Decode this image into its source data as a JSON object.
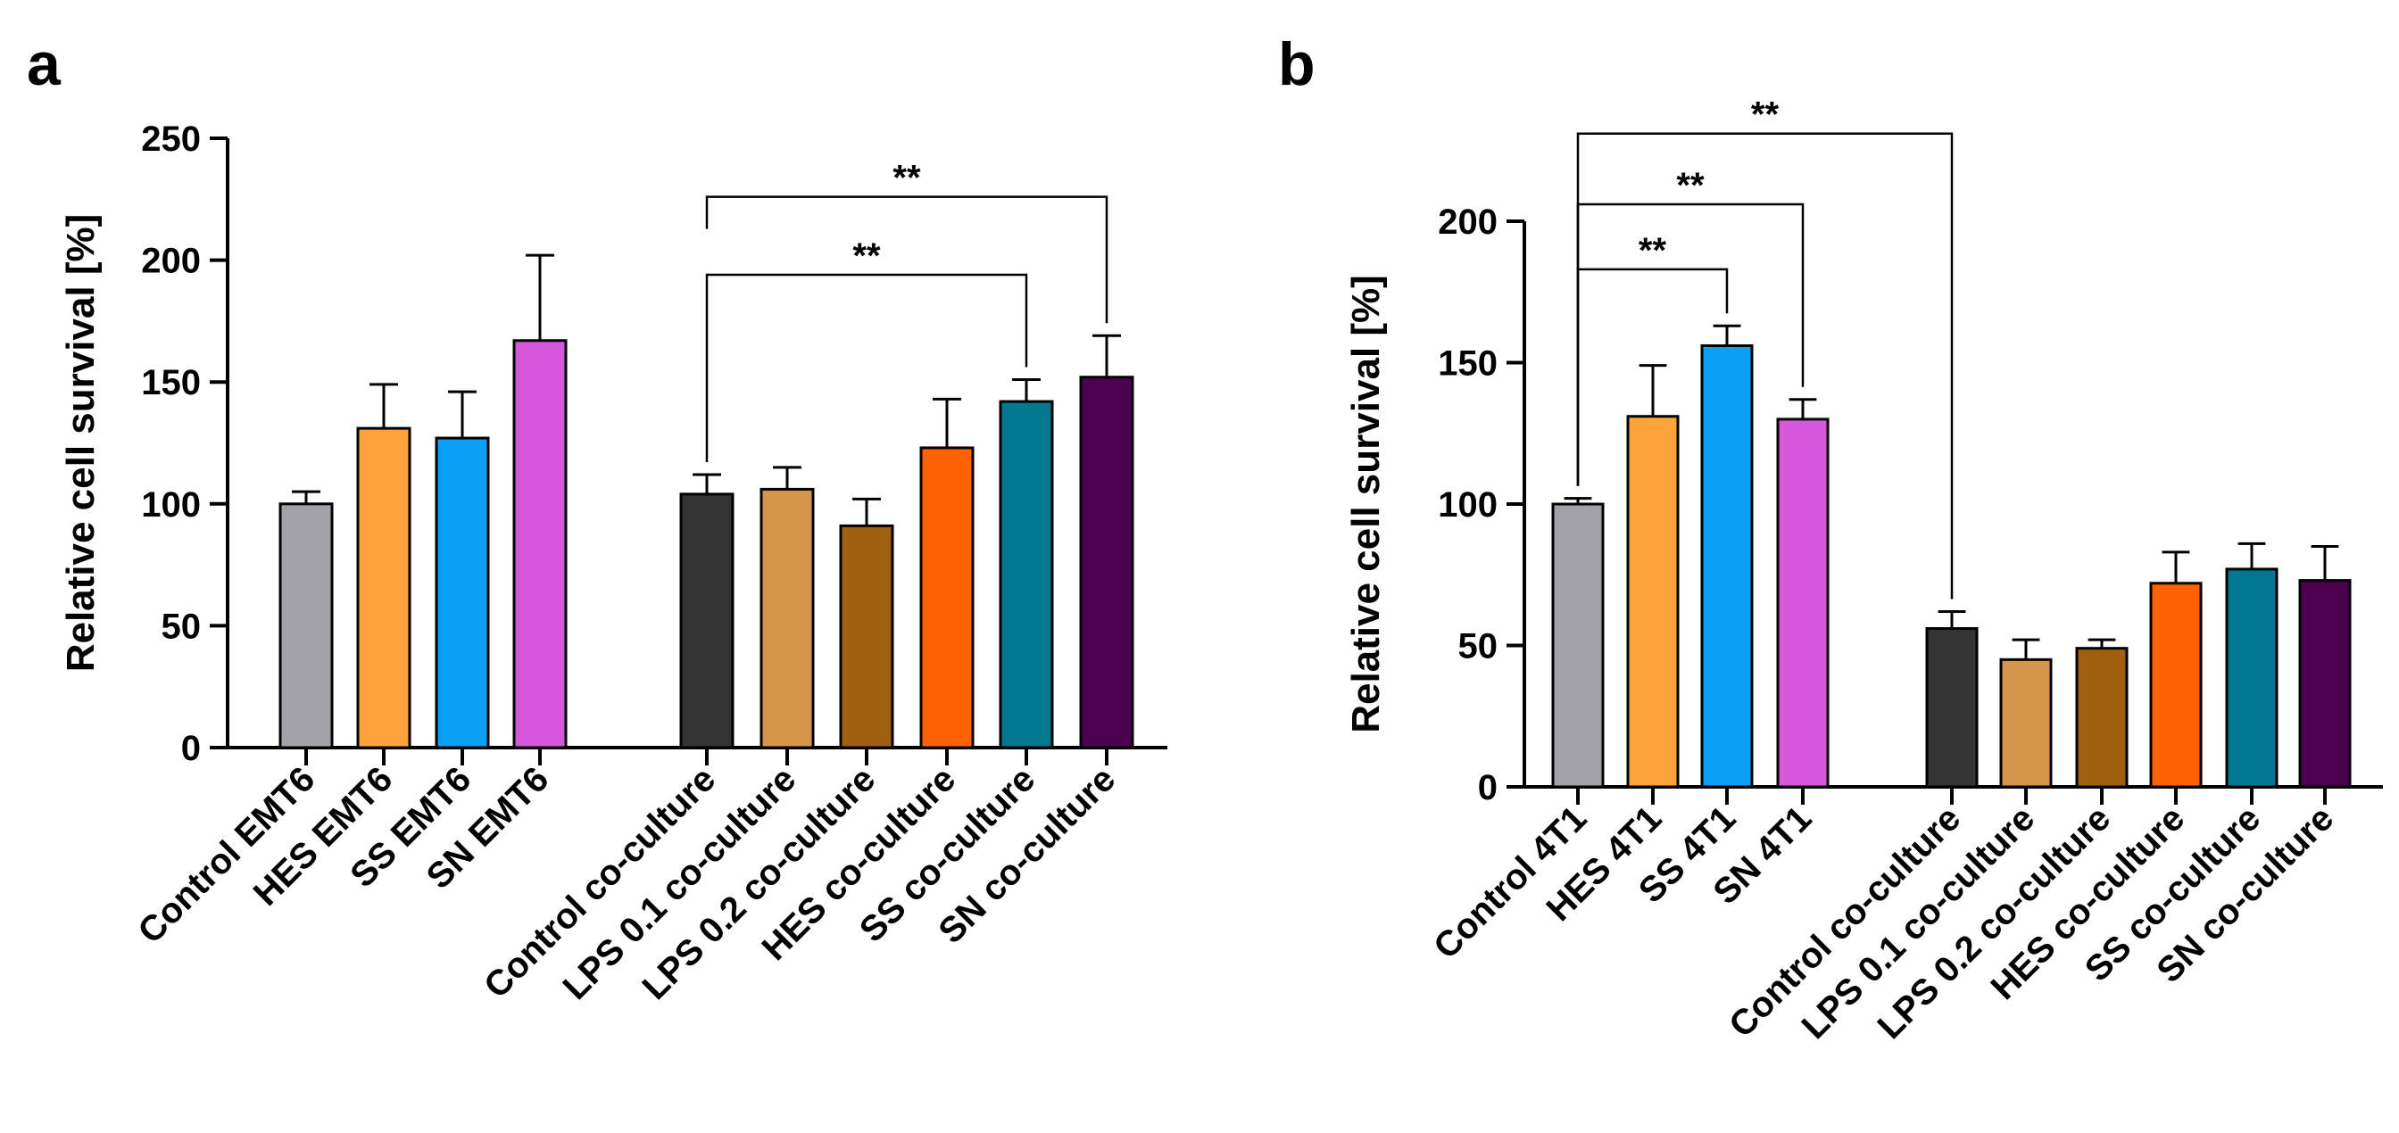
{
  "chart_data": [
    {
      "type": "bar",
      "panel_label": "a",
      "ylabel": "Relative cell survival [%]",
      "ylim": [
        0,
        250
      ],
      "yticks": [
        0,
        50,
        100,
        150,
        200,
        250
      ],
      "grid": false,
      "groups": [
        {
          "categories": [
            "Control EMT6",
            "HES EMT6",
            "SS EMT6",
            "SN EMT6"
          ]
        },
        {
          "categories": [
            "Control co-culture",
            "LPS 0.1 co-culture",
            "LPS 0.2 co-culture",
            "HES co-culture",
            "SS co-culture",
            "SN co-culture"
          ]
        }
      ],
      "bars": [
        {
          "category": "Control EMT6",
          "value": 100,
          "error": 5,
          "color": "#a3a1a8"
        },
        {
          "category": "HES EMT6",
          "value": 131,
          "error": 18,
          "color": "#fba43b"
        },
        {
          "category": "SS EMT6",
          "value": 127,
          "error": 19,
          "color": "#0aa0f5"
        },
        {
          "category": "SN EMT6",
          "value": 167,
          "error": 35,
          "color": "#d457dc"
        },
        {
          "category": "Control co-culture",
          "value": 104,
          "error": 8,
          "color": "#333333"
        },
        {
          "category": "LPS 0.1 co-culture",
          "value": 106,
          "error": 9,
          "color": "#d3964a"
        },
        {
          "category": "LPS 0.2 co-culture",
          "value": 91,
          "error": 11,
          "color": "#a0600f"
        },
        {
          "category": "HES co-culture",
          "value": 123,
          "error": 20,
          "color": "#ff6205"
        },
        {
          "category": "SS co-culture",
          "value": 142,
          "error": 9,
          "color": "#00788f"
        },
        {
          "category": "SN co-culture",
          "value": 152,
          "error": 17,
          "color": "#4b0050"
        }
      ],
      "significance": [
        {
          "from": "Control co-culture",
          "to": "SS co-culture",
          "label": "**",
          "bracket_y": 194
        },
        {
          "from": "Control co-culture",
          "to": "SN co-culture",
          "label": "**",
          "bracket_y": 226
        }
      ]
    },
    {
      "type": "bar",
      "panel_label": "b",
      "ylabel": "Relative cell survival [%]",
      "ylim": [
        0,
        200
      ],
      "yticks": [
        0,
        50,
        100,
        150,
        200
      ],
      "grid": false,
      "groups": [
        {
          "categories": [
            "Control 4T1",
            "HES 4T1",
            "SS 4T1",
            "SN 4T1"
          ]
        },
        {
          "categories": [
            "Control co-culture",
            "LPS 0.1 co-culture",
            "LPS 0.2 co-culture",
            "HES co-culture",
            "SS co-culture",
            "SN co-culture"
          ]
        }
      ],
      "bars": [
        {
          "category": "Control 4T1",
          "value": 100,
          "error": 2,
          "color": "#a3a1a8"
        },
        {
          "category": "HES 4T1",
          "value": 131,
          "error": 18,
          "color": "#fba43b"
        },
        {
          "category": "SS 4T1",
          "value": 156,
          "error": 7,
          "color": "#0aa0f5"
        },
        {
          "category": "SN 4T1",
          "value": 130,
          "error": 7,
          "color": "#d457dc"
        },
        {
          "category": "Control co-culture",
          "value": 56,
          "error": 6,
          "color": "#333333"
        },
        {
          "category": "LPS 0.1 co-culture",
          "value": 45,
          "error": 7,
          "color": "#d3964a"
        },
        {
          "category": "LPS 0.2 co-culture",
          "value": 49,
          "error": 3,
          "color": "#a0600f"
        },
        {
          "category": "HES co-culture",
          "value": 72,
          "error": 11,
          "color": "#ff6205"
        },
        {
          "category": "SS co-culture",
          "value": 77,
          "error": 9,
          "color": "#00788f"
        },
        {
          "category": "SN co-culture",
          "value": 73,
          "error": 12,
          "color": "#4b0050"
        }
      ],
      "significance": [
        {
          "from": "Control 4T1",
          "to": "SS 4T1",
          "label": "**",
          "bracket_y": 183
        },
        {
          "from": "Control 4T1",
          "to": "SN 4T1",
          "label": "**",
          "bracket_y": 206
        },
        {
          "from": "Control 4T1",
          "to": "Control co-culture",
          "label": "**",
          "bracket_y": 231
        }
      ]
    }
  ]
}
